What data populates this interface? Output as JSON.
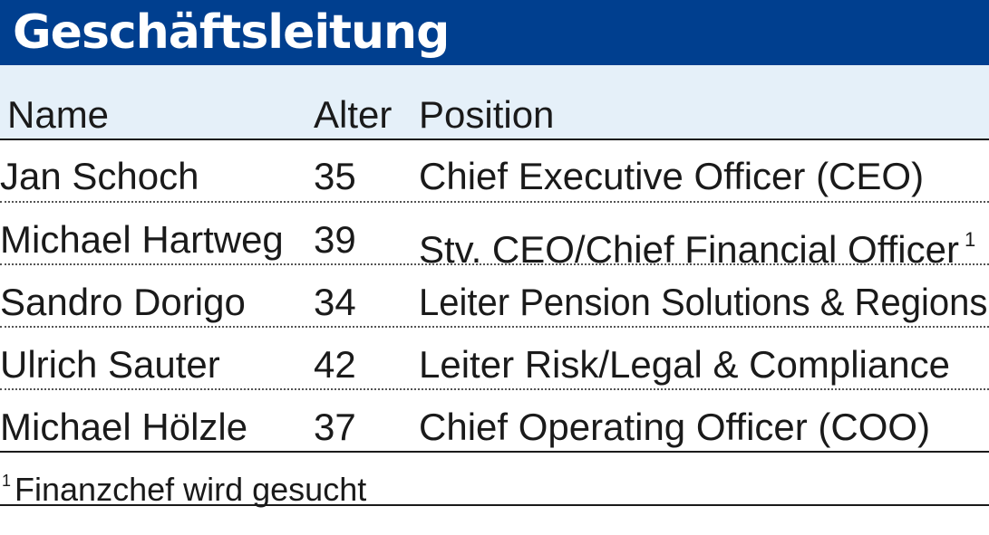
{
  "title": "Geschäftsleitung",
  "columns": {
    "name": "Name",
    "age": "Alter",
    "position": "Position"
  },
  "rows": [
    {
      "name": "Jan Schoch",
      "age": "35",
      "position": "Chief Executive Officer (CEO)",
      "note": ""
    },
    {
      "name": "Michael Hartweg",
      "age": "39",
      "position": "Stv. CEO/Chief Financial Officer",
      "note": "1"
    },
    {
      "name": "Sandro Dorigo",
      "age": "34",
      "position": "Leiter Pension Solutions & Regions",
      "note": ""
    },
    {
      "name": "Ulrich Sauter",
      "age": "42",
      "position": "Leiter Risk/Legal & Compliance",
      "note": ""
    },
    {
      "name": "Michael Hölzle",
      "age": "37",
      "position": "Chief Operating Officer (COO)",
      "note": ""
    }
  ],
  "footnote": {
    "marker": "1",
    "text": "Finanzchef wird gesucht"
  },
  "colors": {
    "title_bar": "#003f8f",
    "header_band": "#e5f0f9",
    "text": "#1a1a1a"
  }
}
